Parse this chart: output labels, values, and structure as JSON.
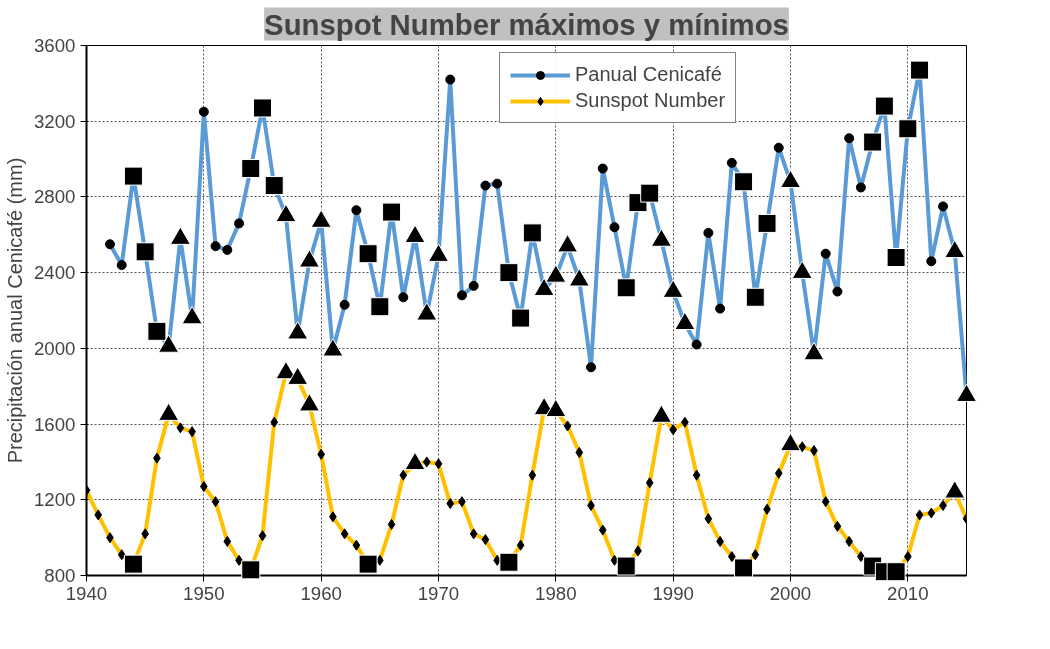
{
  "chart_data": {
    "type": "line",
    "title": "Sunspot Number máximos y mínimos",
    "ylabel": "Precipitación anual Cenicafé (mm)",
    "xlim": [
      1940,
      2015
    ],
    "xticks": [
      1940,
      1950,
      1960,
      1970,
      1980,
      1990,
      2000,
      2010
    ],
    "ylim": [
      800,
      3600
    ],
    "yticks": [
      800,
      1200,
      1600,
      2000,
      2400,
      2800,
      3200,
      3600
    ],
    "grid": true,
    "legend": "top right",
    "line_style": "solid",
    "series": [
      {
        "name": "Panual Cenicafé",
        "color": "#5b9bd5",
        "marker": "circle",
        "x": [
          1942,
          1943,
          1944,
          1945,
          1946,
          1947,
          1948,
          1949,
          1950,
          1951,
          1952,
          1953,
          1954,
          1955,
          1956,
          1957,
          1958,
          1959,
          1960,
          1961,
          1962,
          1963,
          1964,
          1965,
          1966,
          1967,
          1968,
          1969,
          1970,
          1971,
          1972,
          1973,
          1974,
          1975,
          1976,
          1977,
          1978,
          1979,
          1980,
          1981,
          1982,
          1983,
          1984,
          1985,
          1986,
          1987,
          1988,
          1989,
          1990,
          1991,
          1992,
          1993,
          1994,
          1995,
          1996,
          1997,
          1998,
          1999,
          2000,
          2001,
          2002,
          2003,
          2004,
          2005,
          2006,
          2007,
          2008,
          2009,
          2010,
          2011,
          2012,
          2013,
          2014,
          2015
        ],
        "values": [
          2550,
          2440,
          2910,
          2510,
          2090,
          2010,
          2580,
          2160,
          3250,
          2540,
          2520,
          2660,
          2950,
          3270,
          2860,
          2700,
          2080,
          2460,
          2670,
          1990,
          2230,
          2730,
          2500,
          2220,
          2720,
          2270,
          2590,
          2180,
          2490,
          3420,
          2280,
          2330,
          2860,
          2870,
          2400,
          2160,
          2610,
          2310,
          2380,
          2540,
          2360,
          1900,
          2950,
          2640,
          2320,
          2770,
          2820,
          2570,
          2300,
          2130,
          2020,
          2610,
          2210,
          2980,
          2880,
          2270,
          2660,
          3060,
          2880,
          2400,
          1970,
          2500,
          2300,
          3110,
          2850,
          3090,
          3280,
          2480,
          3160,
          3470,
          2460,
          2750,
          2510,
          1750
        ]
      },
      {
        "name": "Sunspot Number",
        "color": "#ffc000",
        "marker": "diamond",
        "x": [
          1940,
          1941,
          1942,
          1943,
          1944,
          1945,
          1946,
          1947,
          1948,
          1949,
          1950,
          1951,
          1952,
          1953,
          1954,
          1955,
          1956,
          1957,
          1958,
          1959,
          1960,
          1961,
          1962,
          1963,
          1964,
          1965,
          1966,
          1967,
          1968,
          1969,
          1970,
          1971,
          1972,
          1973,
          1974,
          1975,
          1976,
          1977,
          1978,
          1979,
          1980,
          1981,
          1982,
          1983,
          1984,
          1985,
          1986,
          1987,
          1988,
          1989,
          1990,
          1991,
          1992,
          1993,
          1994,
          1995,
          1996,
          1997,
          1998,
          1999,
          2000,
          2001,
          2002,
          2003,
          2004,
          2005,
          2006,
          2007,
          2008,
          2009,
          2010,
          2011,
          2012,
          2013,
          2014,
          2015
        ],
        "values": [
          1250,
          1120,
          1000,
          910,
          860,
          1020,
          1420,
          1650,
          1580,
          1560,
          1270,
          1190,
          980,
          880,
          830,
          1010,
          1610,
          1870,
          1840,
          1700,
          1440,
          1110,
          1020,
          960,
          860,
          880,
          1070,
          1330,
          1390,
          1400,
          1390,
          1180,
          1190,
          1020,
          990,
          880,
          870,
          960,
          1330,
          1680,
          1670,
          1590,
          1450,
          1170,
          1040,
          880,
          850,
          930,
          1290,
          1640,
          1570,
          1610,
          1330,
          1100,
          980,
          900,
          840,
          910,
          1150,
          1340,
          1490,
          1480,
          1460,
          1190,
          1060,
          980,
          900,
          850,
          820,
          820,
          900,
          1120,
          1130,
          1170,
          1240,
          1100
        ]
      },
      {
        "type": "scatter",
        "color": "#000000",
        "marker": "square",
        "x": [
          1944,
          1945,
          1946,
          1954,
          1955,
          1956,
          1964,
          1965,
          1966,
          1976,
          1977,
          1978,
          1986,
          1987,
          1988,
          1996,
          1997,
          1998,
          2007,
          2008,
          2009,
          2010,
          2011,
          1944,
          1954,
          1964,
          1976,
          1986,
          1996,
          2007,
          2008,
          2009
        ],
        "values": [
          2910,
          2510,
          2090,
          2950,
          3270,
          2860,
          2500,
          2220,
          2720,
          2400,
          2160,
          2610,
          2320,
          2770,
          2820,
          2880,
          2270,
          2660,
          3090,
          3280,
          2480,
          3160,
          3470,
          860,
          830,
          860,
          870,
          850,
          840,
          850,
          820,
          820
        ]
      },
      {
        "type": "scatter",
        "color": "#000000",
        "marker": "triangle",
        "x": [
          1947,
          1948,
          1949,
          1957,
          1958,
          1959,
          1960,
          1961,
          1968,
          1969,
          1970,
          1979,
          1980,
          1981,
          1982,
          1989,
          1990,
          1991,
          2000,
          2001,
          2002,
          2014,
          2015,
          1947,
          1957,
          1958,
          1959,
          1968,
          1979,
          1980,
          1989,
          2000,
          2014
        ],
        "values": [
          2010,
          2580,
          2160,
          2700,
          2080,
          2460,
          2670,
          1990,
          2590,
          2180,
          2490,
          2310,
          2380,
          2540,
          2360,
          2570,
          2300,
          2130,
          2880,
          2400,
          1970,
          2510,
          1750,
          1650,
          1870,
          1840,
          1700,
          1390,
          1680,
          1670,
          1640,
          1490,
          1240
        ]
      }
    ]
  }
}
